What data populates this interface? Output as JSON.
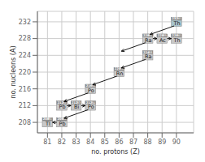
{
  "chart_data": {
    "type": "scatter",
    "xlabel": "no. protons (Z)",
    "ylabel": "no. nucleons (A)",
    "xlim": [
      80.3,
      91.2
    ],
    "ylim": [
      205.5,
      234.5
    ],
    "xticks": [
      81,
      82,
      83,
      84,
      85,
      86,
      87,
      88,
      89,
      90
    ],
    "yticks": [
      208,
      212,
      216,
      220,
      224,
      228,
      232
    ],
    "grid": true,
    "x": [
      81,
      82,
      82,
      83,
      84,
      84,
      86,
      88,
      88,
      89,
      90,
      90
    ],
    "values": [
      208,
      208,
      212,
      212,
      212,
      216,
      220,
      224,
      228,
      228,
      228,
      232
    ],
    "symbols": [
      "Tl",
      "Pb",
      "Pb",
      "Bi",
      "Po",
      "Po",
      "Rn",
      "Ra",
      "Ra",
      "Ac",
      "Th",
      "Th"
    ],
    "mass_labels": [
      "208",
      "208",
      "212",
      "212",
      "212",
      "216",
      "220",
      "224",
      "228",
      "228",
      "228",
      "232"
    ],
    "z_labels": [
      "81",
      "82",
      "82",
      "83",
      "84",
      "84",
      "86",
      "88",
      "88",
      "89",
      "90",
      "90"
    ],
    "colors": [
      "#c8c8c8",
      "#c8c8c8",
      "#c8c8c8",
      "#c8c8c8",
      "#c8c8c8",
      "#c8c8c8",
      "#c8c8c8",
      "#c8c8c8",
      "#c8c8c8",
      "#c8c8c8",
      "#c8c8c8",
      "#a8c4cc"
    ],
    "arrows": [
      [
        90,
        232,
        88,
        228
      ],
      [
        88,
        228,
        89,
        228
      ],
      [
        89,
        228,
        90,
        228
      ],
      [
        88,
        228,
        86,
        224
      ],
      [
        88,
        224,
        86,
        220
      ],
      [
        86,
        220,
        84,
        216
      ],
      [
        84,
        216,
        82,
        212
      ],
      [
        82,
        212,
        83,
        212
      ],
      [
        83,
        212,
        84,
        212
      ],
      [
        84,
        212,
        82,
        208
      ],
      [
        82,
        208,
        81,
        208
      ]
    ]
  }
}
